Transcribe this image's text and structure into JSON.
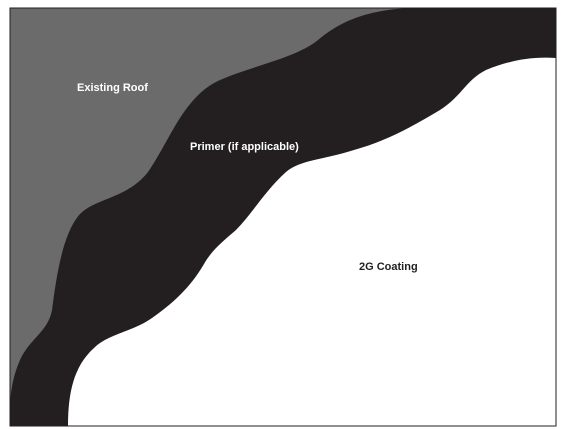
{
  "diagram": {
    "layers": [
      {
        "id": "existing-roof",
        "label": "Existing Roof",
        "color": "#6b6b6b",
        "label_color": "#ffffff"
      },
      {
        "id": "primer",
        "label": "Primer (if applicable)",
        "color": "#231f20",
        "label_color": "#ffffff"
      },
      {
        "id": "coating",
        "label": "2G Coating",
        "color": "#ffffff",
        "label_color": "#231f20"
      }
    ],
    "border_color": "#231f20"
  }
}
